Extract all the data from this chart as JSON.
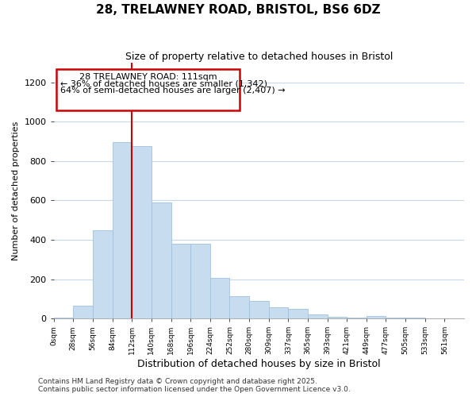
{
  "title": "28, TRELAWNEY ROAD, BRISTOL, BS6 6DZ",
  "subtitle": "Size of property relative to detached houses in Bristol",
  "xlabel": "Distribution of detached houses by size in Bristol",
  "ylabel": "Number of detached properties",
  "bar_color": "#c8dcf0",
  "bar_edge_color": "#a0c0e0",
  "background_color": "#ffffff",
  "grid_color": "#d0dce8",
  "bin_labels": [
    "0sqm",
    "28sqm",
    "56sqm",
    "84sqm",
    "112sqm",
    "140sqm",
    "168sqm",
    "196sqm",
    "224sqm",
    "252sqm",
    "280sqm",
    "309sqm",
    "337sqm",
    "365sqm",
    "393sqm",
    "421sqm",
    "449sqm",
    "477sqm",
    "505sqm",
    "533sqm",
    "561sqm"
  ],
  "bar_values": [
    5,
    65,
    450,
    895,
    875,
    590,
    380,
    380,
    205,
    115,
    90,
    55,
    50,
    20,
    10,
    5,
    12,
    5,
    3,
    2,
    1
  ],
  "ylim": [
    0,
    1300
  ],
  "yticks": [
    0,
    200,
    400,
    600,
    800,
    1000,
    1200
  ],
  "property_label": "28 TRELAWNEY ROAD: 111sqm",
  "pct_smaller": "36% of detached houses are smaller (1,342)",
  "pct_larger": "64% of semi-detached houses are larger (2,407)",
  "vline_bin": 4,
  "footer_line1": "Contains HM Land Registry data © Crown copyright and database right 2025.",
  "footer_line2": "Contains public sector information licensed under the Open Government Licence v3.0."
}
